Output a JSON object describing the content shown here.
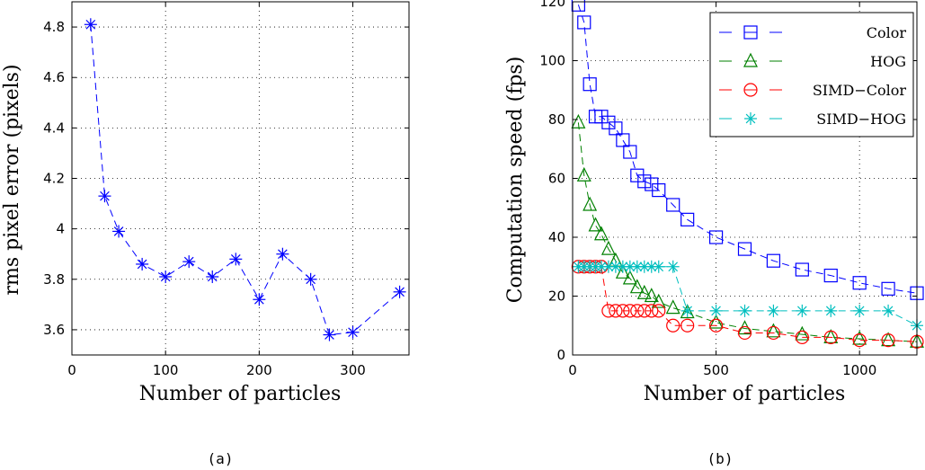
{
  "chart_data": [
    {
      "type": "line",
      "panel_label": "(a)",
      "xlabel": "Number of particles",
      "ylabel": "rms pixel error (pixels)",
      "xlim": [
        0,
        360
      ],
      "ylim": [
        3.5,
        4.9
      ],
      "xticks": [
        0,
        100,
        200,
        300
      ],
      "yticks": [
        3.6,
        3.8,
        4,
        4.2,
        4.4,
        4.6,
        4.8
      ],
      "ytick_labels": [
        "3.6",
        "3.8",
        "4",
        "4.2",
        "4.4",
        "4.6",
        "4.8"
      ],
      "grid": true,
      "series": [
        {
          "marker": "star",
          "color": "#0000ff",
          "x": [
            20,
            35,
            50,
            75,
            100,
            125,
            150,
            175,
            200,
            225,
            255,
            275,
            300,
            350
          ],
          "y": [
            4.81,
            4.13,
            3.99,
            3.86,
            3.81,
            3.87,
            3.81,
            3.88,
            3.72,
            3.9,
            3.8,
            3.58,
            3.59,
            3.75
          ]
        }
      ]
    },
    {
      "type": "line",
      "panel_label": "(b)",
      "xlabel": "Number of particles",
      "ylabel": "Computation speed (fps)",
      "xlim": [
        0,
        1200
      ],
      "ylim": [
        0,
        120
      ],
      "xticks": [
        0,
        500,
        1000
      ],
      "yticks": [
        0,
        20,
        40,
        60,
        80,
        100,
        120
      ],
      "grid": true,
      "legend_position": "top-right",
      "series": [
        {
          "name": "Color",
          "marker": "square",
          "color": "#0000ff",
          "x": [
            20,
            40,
            60,
            80,
            100,
            125,
            150,
            175,
            200,
            225,
            250,
            275,
            300,
            350,
            400,
            500,
            600,
            700,
            800,
            900,
            1000,
            1100,
            1200
          ],
          "y": [
            119,
            113,
            92,
            81,
            81,
            79,
            77,
            73,
            69,
            61,
            59,
            58,
            56,
            51,
            46,
            40,
            36,
            32,
            29,
            27,
            24.5,
            22.5,
            21
          ]
        },
        {
          "name": "HOG",
          "marker": "triangle",
          "color": "#008000",
          "x": [
            20,
            40,
            60,
            80,
            100,
            125,
            150,
            175,
            200,
            225,
            250,
            275,
            300,
            350,
            400,
            500,
            600,
            700,
            800,
            900,
            1000,
            1100,
            1200
          ],
          "y": [
            79,
            61,
            51,
            44,
            41,
            36,
            32,
            28,
            26,
            23,
            21,
            20,
            18,
            16,
            14.5,
            11,
            9,
            8,
            7,
            6,
            5.5,
            5,
            4.5
          ]
        },
        {
          "name": "SIMD−Color",
          "marker": "circle",
          "color": "#ff0000",
          "x": [
            20,
            40,
            60,
            80,
            100,
            125,
            150,
            175,
            200,
            225,
            250,
            275,
            300,
            350,
            400,
            500,
            600,
            700,
            800,
            900,
            1000,
            1100,
            1200
          ],
          "y": [
            30,
            30,
            30,
            30,
            30,
            15,
            15,
            15,
            15,
            15,
            15,
            15,
            15,
            10,
            10,
            10,
            7.5,
            7.5,
            6,
            6,
            5,
            5,
            4.5
          ]
        },
        {
          "name": "SIMD−HOG",
          "marker": "star",
          "color": "#00bfbf",
          "x": [
            20,
            40,
            60,
            80,
            100,
            125,
            150,
            175,
            200,
            225,
            250,
            275,
            300,
            350,
            400,
            500,
            600,
            700,
            800,
            900,
            1000,
            1100,
            1200
          ],
          "y": [
            30,
            30,
            30,
            30,
            30,
            30,
            30,
            30,
            30,
            30,
            30,
            30,
            30,
            30,
            15,
            15,
            15,
            15,
            15,
            15,
            15,
            15,
            10
          ]
        }
      ]
    }
  ]
}
